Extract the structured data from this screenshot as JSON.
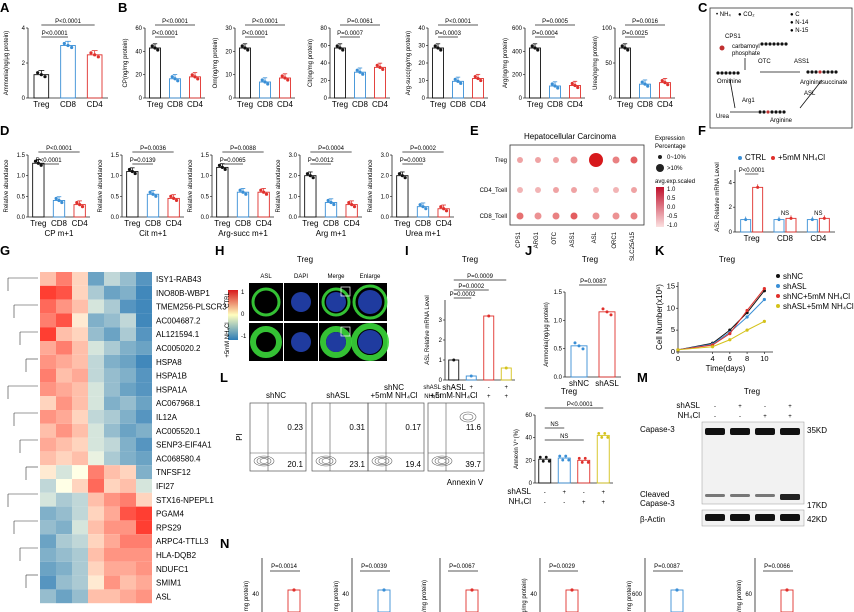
{
  "colors": {
    "treg": "#111111",
    "cd8": "#3a8fd6",
    "cd4": "#e0302c",
    "shnc": "#111111",
    "shasl": "#3a8fd6",
    "shnc_nh4": "#e0302c",
    "shasl_nh4": "#d4c21a",
    "dapi": "#2241b0",
    "asl": "#3ad63a",
    "heat_high": "#d7191c",
    "heat_low": "#2c7bb6"
  },
  "groups": [
    "Treg",
    "CD8",
    "CD4"
  ],
  "panels": {
    "A": {
      "letter": "A",
      "ylabel": "Ammonia(ng/μg protein)",
      "p_top": "P<0.0001",
      "p_bot": "P<0.0001",
      "yticks": [
        "0",
        "2",
        "4"
      ],
      "chart_data": {
        "type": "bar",
        "categories": [
          "Treg",
          "CD8",
          "CD4"
        ],
        "values": [
          2.0,
          4.5,
          3.7
        ],
        "ylim": [
          0,
          6
        ]
      }
    },
    "B": {
      "letter": "B",
      "charts": [
        {
          "ylabel": "CP(ng/mg protein)",
          "p1": "P<0.0001",
          "p2": "P<0.0001",
          "yticks": [
            "0",
            "20",
            "40",
            "60"
          ],
          "values": [
            52,
            20,
            22
          ]
        },
        {
          "ylabel": "Orn(ng/mg protein)",
          "p1": "P<0.0001",
          "p2": "P<0.0001",
          "yticks": [
            "0",
            "10",
            "20",
            "30"
          ],
          "values": [
            25,
            8,
            10
          ]
        },
        {
          "ylabel": "Cit(ng/mg protein)",
          "p1": "P=0.0061",
          "p2": "P=0.0007",
          "yticks": [
            "0",
            "20",
            "40",
            "60",
            "80"
          ],
          "values": [
            62,
            32,
            38
          ]
        },
        {
          "ylabel": "Arg-succ(ng/mg protein)",
          "p1": "P<0.0001",
          "p2": "P=0.0003",
          "yticks": [
            "0",
            "10",
            "20",
            "30",
            "40"
          ],
          "values": [
            36,
            12,
            14
          ]
        },
        {
          "ylabel": "Arg(ng/mg protein)",
          "p1": "P=0.0005",
          "p2": "P=0.0004",
          "yticks": [
            "0",
            "200",
            "400",
            "600"
          ],
          "values": [
            500,
            120,
            125
          ]
        },
        {
          "ylabel": "Urea(ng/mg protein)",
          "p1": "P=0.0016",
          "p2": "P=0.0025",
          "yticks": [
            "0",
            "50",
            "100"
          ],
          "values": [
            65,
            18,
            20
          ]
        }
      ]
    },
    "C": {
      "letter": "C",
      "legend": [
        "NH₄",
        "CO₂",
        "C",
        "N-14",
        "N-15"
      ],
      "nodes": [
        "carbamoyl phosphate",
        "Ornithine",
        "Argininosuccinate",
        "Arginine",
        "Urea"
      ],
      "enzymes": [
        "CPS1",
        "OTC",
        "ASS1",
        "ASL",
        "Arg1"
      ]
    },
    "D": {
      "letter": "D",
      "ylabel": "Relative abundance",
      "charts": [
        {
          "xlabel": "CP m+1",
          "p1": "P<0.0001",
          "p2": "P<0.0001",
          "yticks": [
            "0.0",
            "0.5",
            "1.0",
            "1.5"
          ],
          "values": [
            1.3,
            0.4,
            0.3
          ]
        },
        {
          "xlabel": "Cit m+1",
          "p1": "P=0.0036",
          "p2": "P=0.0139",
          "yticks": [
            "0.0",
            "0.5",
            "1.0",
            "1.5"
          ],
          "values": [
            1.1,
            0.55,
            0.45
          ]
        },
        {
          "xlabel": "Arg-succ m+1",
          "p1": "P=0.0088",
          "p2": "P=0.0065",
          "yticks": [
            "0.0",
            "0.5",
            "1.0",
            "1.5"
          ],
          "values": [
            1.2,
            0.6,
            0.6
          ]
        },
        {
          "xlabel": "Arg m+1",
          "p1": "P=0.0004",
          "p2": "P=0.0012",
          "yticks": [
            "0.0",
            "1.0",
            "2.0",
            "3.0"
          ],
          "values": [
            2.0,
            0.7,
            0.6
          ]
        },
        {
          "xlabel": "Urea m+1",
          "p1": "P=0.0002",
          "p2": "P=0.0003",
          "yticks": [
            "0.0",
            "1.0",
            "2.0",
            "3.0"
          ],
          "values": [
            2.0,
            0.5,
            0.4
          ]
        }
      ]
    },
    "E": {
      "letter": "E",
      "title": "Hepatocellular Carcinoma",
      "rows": [
        "Treg",
        "CD4_Tcell",
        "CD8_Tcell"
      ],
      "genes": [
        "CPS1",
        "ARG1",
        "OTC",
        "ASS1",
        "ASL",
        "ORC1",
        "SLC25A15"
      ],
      "legend_title": "Expression Percentage",
      "legend_sizes": [
        "0~10%",
        ">10%"
      ],
      "cbar_title": "avg.exp.scaled",
      "cbar_ticks": [
        "1.0",
        "0.5",
        "0.0",
        "-0.5",
        "-1.0"
      ]
    },
    "F": {
      "letter": "F",
      "ylabel": "ASL Relative mRNA Level",
      "legend": [
        "CTRL",
        "+5mM NH₄Cl"
      ],
      "p": "P<0.0001",
      "ns1": "NS",
      "ns2": "NS",
      "yticks": [
        "0",
        "2",
        "4"
      ],
      "chart_data": {
        "type": "bar",
        "categories": [
          "Treg",
          "CD8",
          "CD4"
        ],
        "series": [
          {
            "name": "CTRL",
            "values": [
              1.0,
              1.0,
              1.0
            ]
          },
          {
            "name": "+5mM NH₄Cl",
            "values": [
              3.6,
              1.1,
              1.1
            ]
          }
        ],
        "ylim": [
          0,
          5
        ]
      }
    },
    "G": {
      "letter": "G",
      "legend_ticks": [
        "1",
        "0",
        "-1"
      ],
      "genes": [
        "ISY1-RAB43",
        "INO80B-WBP1",
        "TMEM256-PLSCR3",
        "AC004687.2",
        "AL121594.1",
        "AC005020.2",
        "HSPA8",
        "HSPA1B",
        "HSPA1A",
        "AC067968.1",
        "IL12A",
        "AC005520.1",
        "SENP3-EIF4A1",
        "AC068580.4",
        "TNFSF12",
        "IFI27",
        "STX16-NPEPL1",
        "PGAM4",
        "RPS29",
        "ARPC4-TTLL3",
        "HLA-DQB2",
        "NDUFC1",
        "SMIM1",
        "ASL"
      ]
    },
    "H": {
      "letter": "H",
      "title": "Treg",
      "cols": [
        "ASL",
        "DAPI",
        "Merge",
        "Enlarge"
      ],
      "rows": [
        "CTRL",
        "+5mM NH₄Cl"
      ]
    },
    "I": {
      "letter": "I",
      "title": "Treg",
      "ylabel": "ASL Relative mRNA Level",
      "p1": "P=0.0002",
      "p2": "P=0.0009",
      "p3": "P=0.0002",
      "row1": "shASL",
      "row2": "NH₄Cl",
      "signs1": [
        "-",
        "+",
        "-",
        "+"
      ],
      "signs2": [
        "-",
        "-",
        "+",
        "+"
      ],
      "yticks": [
        "0",
        "1",
        "2",
        "3"
      ],
      "chart_data": {
        "type": "bar",
        "values": [
          1.0,
          0.2,
          3.2,
          0.6
        ],
        "ylim": [
          0,
          4
        ]
      }
    },
    "J": {
      "letter": "J",
      "title": "Treg",
      "ylabel": "Ammonia(ng/μg protein)",
      "p": "P=0.0087",
      "cats": [
        "shNC",
        "shASL"
      ],
      "yticks": [
        "0.0",
        "0.5",
        "1.0",
        "1.5"
      ],
      "chart_data": {
        "type": "bar",
        "categories": [
          "shNC",
          "shASL"
        ],
        "values": [
          0.55,
          1.15
        ],
        "ylim": [
          0,
          1.5
        ]
      }
    },
    "K": {
      "letter": "K",
      "title": "Treg",
      "ylabel": "Cell Number(x10⁶)",
      "xlabel": "Time(days)",
      "legend": [
        "shNC",
        "shASL",
        "shNC+5mM NH₄Cl",
        "shASL+5mM NH₄Cl"
      ],
      "xticks": [
        "0",
        "4",
        "6",
        "8",
        "10"
      ],
      "yticks": [
        "0",
        "5",
        "10",
        "15"
      ],
      "chart_data": {
        "type": "line",
        "x": [
          0,
          4,
          6,
          8,
          10
        ],
        "series": [
          {
            "name": "shNC",
            "values": [
              0.5,
              2,
              5,
              9,
              14
            ]
          },
          {
            "name": "shASL",
            "values": [
              0.5,
              1.8,
              4.5,
              8,
              12
            ]
          },
          {
            "name": "shNC+5mM NH₄Cl",
            "values": [
              0.5,
              1.6,
              4.2,
              9.5,
              14.5
            ]
          },
          {
            "name": "shASL+5mM NH₄Cl",
            "values": [
              0.5,
              1.2,
              2.8,
              5,
              7
            ]
          }
        ],
        "ylim": [
          0,
          16
        ]
      }
    },
    "L": {
      "letter": "L",
      "cols": [
        "shNC",
        "shASL",
        "shNC +5mM NH₄Cl",
        "shASL +5mM NH₄Cl"
      ],
      "ylabel": "PI",
      "xlabel": "Annexin V",
      "q_top": [
        "0.23",
        "0.31",
        "0.17",
        "11.6"
      ],
      "q_bot": [
        "20.1",
        "23.1",
        "19.4",
        "39.7"
      ],
      "bar_title": "Treg",
      "bar_ylabel": "Annexin V⁺(%)",
      "p": "P<0.0001",
      "ns1": "NS",
      "ns2": "NS",
      "row1": "shASL",
      "row2": "NH₄Cl",
      "signs1": [
        "-",
        "+",
        "-",
        "+"
      ],
      "signs2": [
        "-",
        "-",
        "+",
        "+"
      ],
      "yticks": [
        "0",
        "20",
        "40",
        "60"
      ],
      "chart_data": {
        "type": "bar",
        "values": [
          21,
          22,
          20,
          42
        ],
        "ylim": [
          0,
          60
        ]
      }
    },
    "M": {
      "letter": "M",
      "title": "Treg",
      "row1": "shASL",
      "row2": "NH₄Cl",
      "signs1": [
        "-",
        "+",
        "-",
        "+"
      ],
      "signs2": [
        "-",
        "-",
        "+",
        "+"
      ],
      "bands": [
        "Capase-3",
        "Cleaved Capase-3",
        "β-Actin"
      ],
      "sizes": [
        "35KD",
        "17KD",
        "42KD"
      ]
    },
    "N": {
      "letter": "N",
      "ylabels": [
        "mg protein)",
        "mg protein)",
        "/mg protein)",
        "g/mg protein)",
        "mg protein)",
        "/mg protein)"
      ],
      "ps": [
        "P=0.0014",
        "P=0.0039",
        "P=0.0067",
        "P=0.0029",
        "P=0.0087",
        "P=0.0066"
      ],
      "yticks": [
        "40",
        "40",
        "",
        "40",
        "600",
        "60"
      ]
    }
  }
}
